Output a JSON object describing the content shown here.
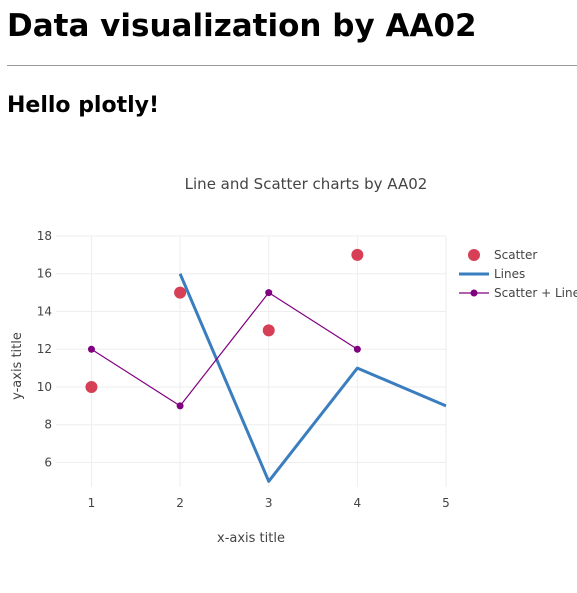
{
  "page": {
    "heading": "Data visualization by AA02",
    "subheading": "Hello plotly!"
  },
  "chart_data": {
    "type": "line",
    "title": "Line and Scatter charts by AA02",
    "xlabel": "x-axis title",
    "ylabel": "y-axis title",
    "xlim": [
      0.6,
      5
    ],
    "ylim": [
      4.7,
      18
    ],
    "x_ticks": [
      1,
      2,
      3,
      4,
      5
    ],
    "y_ticks": [
      6,
      8,
      10,
      12,
      14,
      16,
      18
    ],
    "grid": true,
    "legend": "right",
    "series": [
      {
        "name": "Scatter",
        "mode": "markers",
        "color": "#d63f55",
        "x": [
          1,
          2,
          3,
          4
        ],
        "y": [
          10,
          15,
          13,
          17
        ]
      },
      {
        "name": "Lines",
        "mode": "lines",
        "color": "#3a7ebf",
        "x": [
          2,
          3,
          4,
          5
        ],
        "y": [
          16,
          5,
          11,
          9
        ]
      },
      {
        "name": "Scatter + Lines",
        "mode": "lines+markers",
        "color": "#800080",
        "x": [
          1,
          2,
          3,
          4
        ],
        "y": [
          12,
          9,
          15,
          12
        ]
      }
    ]
  }
}
